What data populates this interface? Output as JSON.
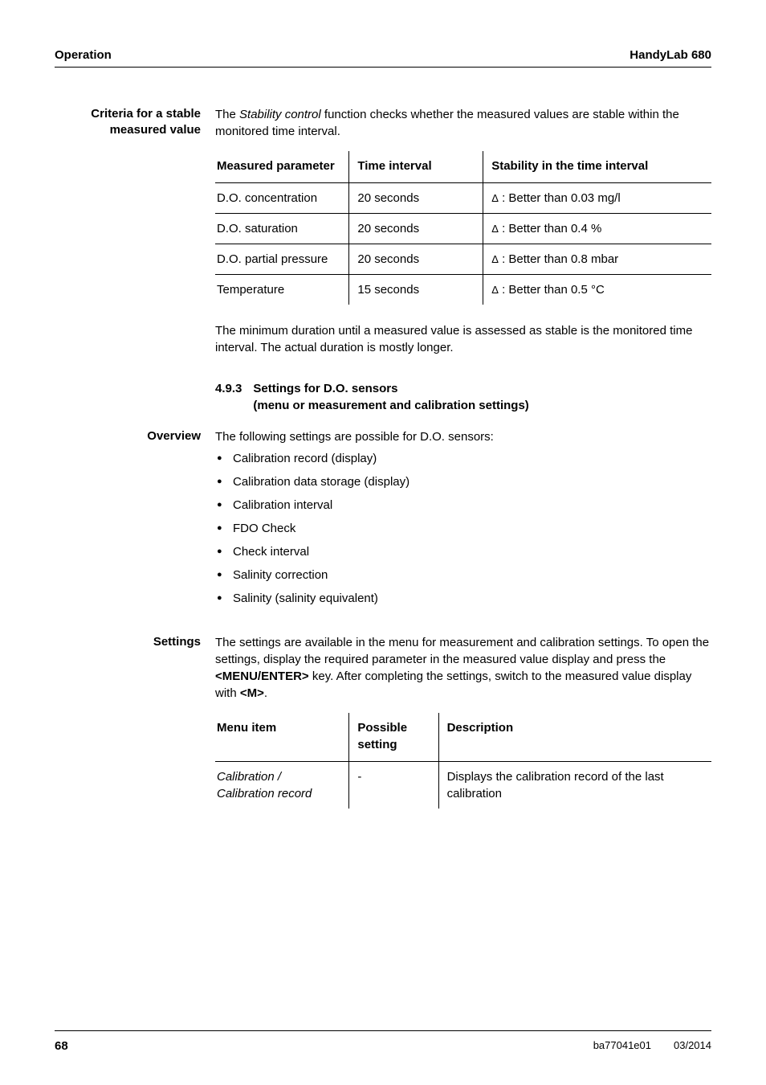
{
  "header": {
    "left": "Operation",
    "right": "HandyLab 680"
  },
  "section_criteria": {
    "side_label_line1": "Criteria for a stable",
    "side_label_line2": "measured value",
    "intro_prefix": "The ",
    "intro_italic": "Stability control",
    "intro_suffix": " function checks whether the measured values are stable within the monitored time interval."
  },
  "table1": {
    "col_widths": [
      "27%",
      "27%",
      "46%"
    ],
    "headers": [
      "Measured parameter",
      "Time interval",
      "Stability in the time interval"
    ],
    "delta": "Δ",
    "rows": [
      [
        "D.O. concentration",
        "20 seconds",
        ": Better than 0.03 mg/l"
      ],
      [
        "D.O. saturation",
        "20 seconds",
        ": Better than 0.4 %"
      ],
      [
        "D.O. partial pressure",
        "20 seconds",
        ": Better than 0.8 mbar"
      ],
      [
        "Temperature",
        "15 seconds",
        ": Better than 0.5 °C"
      ]
    ]
  },
  "after_table1": "The minimum duration until a measured value is assessed as stable is the monitored time interval. The actual duration is mostly longer.",
  "section_493": {
    "num": "4.9.3",
    "title_line1": "Settings for D.O. sensors",
    "title_line2": "(menu or measurement and calibration settings)"
  },
  "overview": {
    "label": "Overview",
    "intro": "The following settings are possible for D.O. sensors:",
    "bullets": [
      "Calibration record (display)",
      "Calibration data storage (display)",
      "Calibration interval",
      "FDO Check",
      "Check interval",
      "Salinity correction",
      "Salinity (salinity equivalent)"
    ]
  },
  "settings": {
    "label": "Settings",
    "p1": "The settings are available in the menu for measurement and calibration settings. To open the settings, display the required parameter in the measured value display and press the ",
    "k1": "<MENU/ENTER>",
    "p2": " key. After completing the settings, switch to the measured value display with ",
    "k2": "<M>",
    "p3": "."
  },
  "table2": {
    "col_widths": [
      "27%",
      "18%",
      "55%"
    ],
    "headers": [
      "Menu item",
      "Possible setting",
      "Description"
    ],
    "row1_item_line1": "Calibration",
    "row1_item_slash": " / ",
    "row1_item_line2": "Calibration record",
    "row1_setting": "-",
    "row1_desc": "Displays the calibration record of the last calibration"
  },
  "footer": {
    "page": "68",
    "doc": "ba77041e01",
    "date": "03/2014"
  }
}
